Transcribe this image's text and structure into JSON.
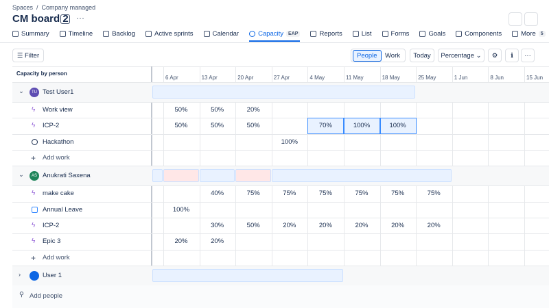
{
  "breadcrumbs": [
    "Spaces",
    "Company managed"
  ],
  "board": {
    "title": "CM board 2"
  },
  "tabs": [
    {
      "label": "Summary"
    },
    {
      "label": "Timeline"
    },
    {
      "label": "Backlog"
    },
    {
      "label": "Active sprints"
    },
    {
      "label": "Calendar"
    },
    {
      "label": "Capacity",
      "badge": "EAP"
    },
    {
      "label": "Reports"
    },
    {
      "label": "List"
    },
    {
      "label": "Forms"
    },
    {
      "label": "Goals"
    },
    {
      "label": "Components"
    },
    {
      "label": "More",
      "badge": "5"
    }
  ],
  "active_tab": 5,
  "toolbar": {
    "filter": "Filter",
    "views": [
      "People",
      "Work"
    ],
    "active_view": 0,
    "today": "Today",
    "unit": "Percentage"
  },
  "grid": {
    "header": "Capacity by person",
    "dates": [
      "6 Apr",
      "13 Apr",
      "20 Apr",
      "27 Apr",
      "4 May",
      "11 May",
      "18 May",
      "25 May",
      "1 Jun",
      "8 Jun",
      "15 Jun"
    ],
    "groups": [
      {
        "name": "Test User1",
        "initials": "TU",
        "add_work": "Add work",
        "items": [
          {
            "name": "Work view",
            "cells": [
              "50%",
              "50%",
              "20%",
              null,
              null,
              null,
              null,
              null,
              null,
              null,
              null
            ]
          },
          {
            "name": "ICP-2",
            "cells": [
              "50%",
              "50%",
              "50%",
              null,
              "70%",
              "100%",
              "100%",
              null,
              null,
              null,
              null
            ]
          },
          {
            "name": "Hackathon",
            "cells": [
              null,
              null,
              null,
              "100%",
              null,
              null,
              null,
              null,
              null,
              null,
              null
            ]
          }
        ]
      },
      {
        "name": "Anukrati Saxena",
        "initials": "AS",
        "add_work": "Add work",
        "items": [
          {
            "name": "make cake",
            "cells": [
              null,
              "40%",
              "75%",
              "75%",
              "75%",
              "75%",
              "75%",
              "75%",
              null,
              null,
              null
            ]
          },
          {
            "name": "Annual Leave",
            "cells": [
              "100%",
              null,
              null,
              null,
              null,
              null,
              null,
              null,
              null,
              null,
              null
            ]
          },
          {
            "name": "ICP-2",
            "cells": [
              null,
              "30%",
              "50%",
              "20%",
              "20%",
              "20%",
              "20%",
              "20%",
              null,
              null,
              null
            ]
          },
          {
            "name": "Epic 3",
            "cells": [
              "20%",
              "20%",
              null,
              null,
              null,
              null,
              null,
              null,
              null,
              null,
              null
            ]
          }
        ]
      },
      {
        "name": "User 1",
        "items": []
      }
    ]
  },
  "footer": {
    "add_people": "Add people"
  }
}
